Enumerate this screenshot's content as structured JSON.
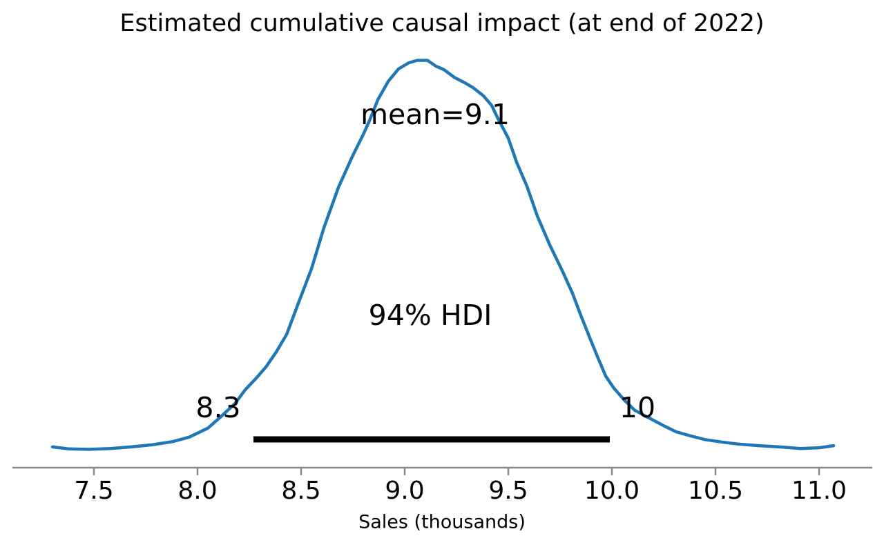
{
  "chart_data": {
    "type": "line",
    "subtype": "posterior-density-kde",
    "title": "Estimated cumulative causal impact (at end of 2022)",
    "xlabel": "Sales (thousands)",
    "x_ticks": [
      "7.5",
      "8.0",
      "8.5",
      "9.0",
      "9.5",
      "10.0",
      "10.5",
      "11.0"
    ],
    "x_tick_values": [
      7.5,
      8.0,
      8.5,
      9.0,
      9.5,
      10.0,
      10.5,
      11.0
    ],
    "xlim": [
      7.2,
      11.15
    ],
    "mean": 9.1,
    "mean_label": "mean=9.1",
    "hdi_percent": "94%",
    "hdi_label": "94% HDI",
    "hdi_lower_label": "8.3",
    "hdi_upper_label": "10",
    "hdi_interval": [
      8.27,
      9.99
    ],
    "grid": false,
    "legend": false,
    "curve_color": "#1f77b4",
    "hdi_bar_color": "#000000",
    "axis_color": "#888888",
    "curve": [
      [
        7.3,
        0.051
      ],
      [
        7.38,
        0.046
      ],
      [
        7.48,
        0.045
      ],
      [
        7.58,
        0.047
      ],
      [
        7.68,
        0.051
      ],
      [
        7.78,
        0.056
      ],
      [
        7.88,
        0.064
      ],
      [
        7.96,
        0.075
      ],
      [
        8.05,
        0.097
      ],
      [
        8.11,
        0.124
      ],
      [
        8.18,
        0.157
      ],
      [
        8.23,
        0.191
      ],
      [
        8.28,
        0.218
      ],
      [
        8.33,
        0.247
      ],
      [
        8.38,
        0.284
      ],
      [
        8.43,
        0.327
      ],
      [
        8.48,
        0.395
      ],
      [
        8.55,
        0.488
      ],
      [
        8.61,
        0.589
      ],
      [
        8.68,
        0.688
      ],
      [
        8.75,
        0.767
      ],
      [
        8.8,
        0.818
      ],
      [
        8.83,
        0.852
      ],
      [
        8.87,
        0.903
      ],
      [
        8.92,
        0.948
      ],
      [
        8.97,
        0.979
      ],
      [
        9.02,
        0.994
      ],
      [
        9.06,
        1.0
      ],
      [
        9.11,
        1.0
      ],
      [
        9.15,
        0.986
      ],
      [
        9.19,
        0.977
      ],
      [
        9.24,
        0.958
      ],
      [
        9.29,
        0.945
      ],
      [
        9.33,
        0.933
      ],
      [
        9.38,
        0.913
      ],
      [
        9.42,
        0.889
      ],
      [
        9.45,
        0.857
      ],
      [
        9.5,
        0.809
      ],
      [
        9.54,
        0.75
      ],
      [
        9.59,
        0.691
      ],
      [
        9.64,
        0.618
      ],
      [
        9.7,
        0.547
      ],
      [
        9.76,
        0.484
      ],
      [
        9.81,
        0.428
      ],
      [
        9.85,
        0.374
      ],
      [
        9.89,
        0.323
      ],
      [
        9.93,
        0.273
      ],
      [
        9.97,
        0.225
      ],
      [
        10.01,
        0.195
      ],
      [
        10.06,
        0.166
      ],
      [
        10.11,
        0.141
      ],
      [
        10.18,
        0.122
      ],
      [
        10.25,
        0.103
      ],
      [
        10.31,
        0.088
      ],
      [
        10.38,
        0.078
      ],
      [
        10.45,
        0.069
      ],
      [
        10.53,
        0.063
      ],
      [
        10.61,
        0.058
      ],
      [
        10.71,
        0.054
      ],
      [
        10.81,
        0.051
      ],
      [
        10.91,
        0.047
      ],
      [
        11.0,
        0.049
      ],
      [
        11.07,
        0.054
      ]
    ]
  }
}
